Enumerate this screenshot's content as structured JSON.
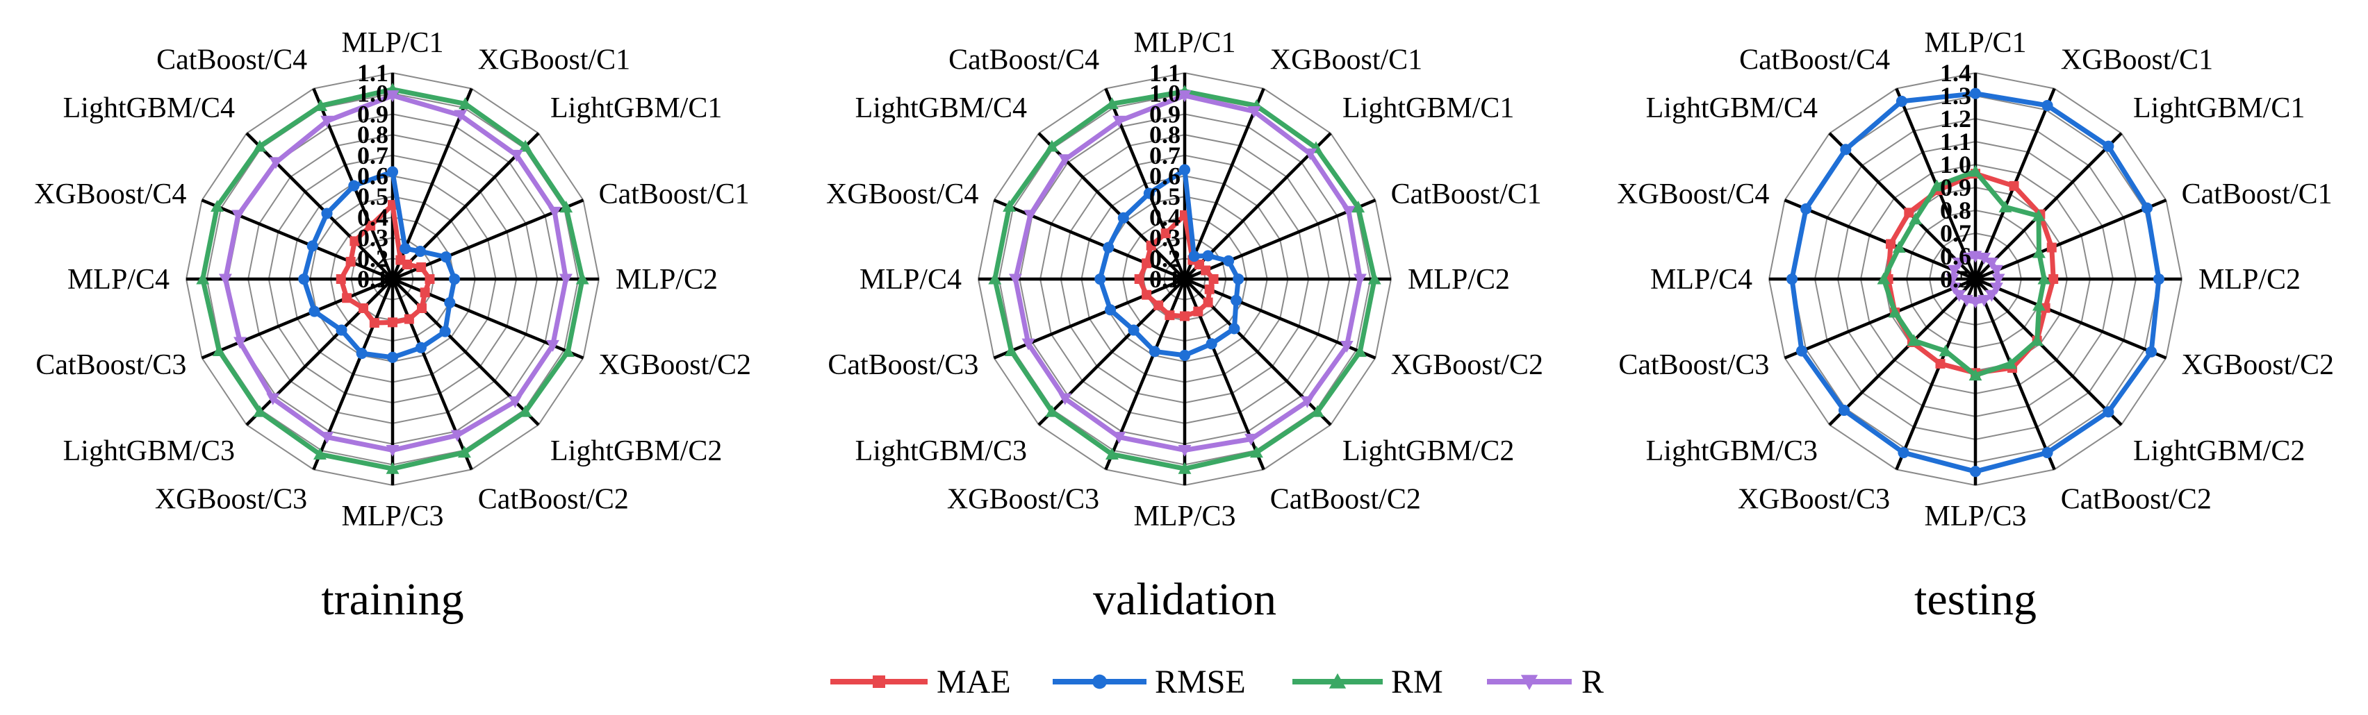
{
  "colors": {
    "MAE": "#e8474c",
    "RMSE": "#1f6fd6",
    "RM": "#3ba864",
    "R": "#a976de"
  },
  "chart_data": [
    {
      "type": "radar",
      "title": "training",
      "categories": [
        "MLP/C1",
        "XGBoost/C1",
        "LightGBM/C1",
        "CatBoost/C1",
        "MLP/C2",
        "XGBoost/C2",
        "LightGBM/C2",
        "CatBoost/C2",
        "MLP/C3",
        "XGBoost/C3",
        "LightGBM/C3",
        "CatBoost/C3",
        "MLP/C4",
        "XGBoost/C4",
        "LightGBM/C4",
        "CatBoost/C4"
      ],
      "rlim": [
        0.1,
        1.1
      ],
      "ticks": [
        "0.1",
        "0.2",
        "0.3",
        "0.4",
        "0.5",
        "0.6",
        "0.7",
        "0.8",
        "0.9",
        "1.0",
        "1.1"
      ],
      "series": [
        {
          "name": "MAE",
          "values": [
            0.46,
            0.2,
            0.2,
            0.25,
            0.28,
            0.27,
            0.3,
            0.31,
            0.31,
            0.33,
            0.3,
            0.34,
            0.35,
            0.32,
            0.36,
            0.38
          ]
        },
        {
          "name": "RMSE",
          "values": [
            0.62,
            0.26,
            0.29,
            0.38,
            0.4,
            0.4,
            0.46,
            0.46,
            0.48,
            0.49,
            0.45,
            0.51,
            0.53,
            0.52,
            0.55,
            0.59
          ]
        },
        {
          "name": "RM",
          "values": [
            1.02,
            1.02,
            1.01,
            1.01,
            1.02,
            1.02,
            1.01,
            1.01,
            1.02,
            1.02,
            1.01,
            1.01,
            1.02,
            1.02,
            1.01,
            1.01
          ]
        },
        {
          "name": "R",
          "values": [
            0.99,
            0.96,
            0.95,
            0.95,
            0.94,
            0.94,
            0.94,
            0.92,
            0.93,
            0.93,
            0.92,
            0.9,
            0.91,
            0.91,
            0.9,
            0.93
          ]
        }
      ]
    },
    {
      "type": "radar",
      "title": "validation",
      "categories": [
        "MLP/C1",
        "XGBoost/C1",
        "LightGBM/C1",
        "CatBoost/C1",
        "MLP/C2",
        "XGBoost/C2",
        "LightGBM/C2",
        "CatBoost/C2",
        "MLP/C3",
        "XGBoost/C3",
        "LightGBM/C3",
        "CatBoost/C3",
        "MLP/C4",
        "XGBoost/C4",
        "LightGBM/C4",
        "CatBoost/C4"
      ],
      "rlim": [
        0.1,
        1.1
      ],
      "ticks": [
        "0.1",
        "0.2",
        "0.3",
        "0.4",
        "0.5",
        "0.6",
        "0.7",
        "0.8",
        "0.9",
        "1.0",
        "1.1"
      ],
      "series": [
        {
          "name": "MAE",
          "values": [
            0.41,
            0.2,
            0.2,
            0.21,
            0.24,
            0.23,
            0.26,
            0.27,
            0.28,
            0.29,
            0.28,
            0.3,
            0.32,
            0.3,
            0.33,
            0.34
          ]
        },
        {
          "name": "RMSE",
          "values": [
            0.63,
            0.22,
            0.26,
            0.33,
            0.36,
            0.37,
            0.44,
            0.44,
            0.47,
            0.48,
            0.45,
            0.49,
            0.51,
            0.5,
            0.52,
            0.55
          ]
        },
        {
          "name": "RM",
          "values": [
            1.01,
            1.01,
            1.0,
            1.01,
            1.02,
            1.02,
            1.01,
            1.01,
            1.02,
            1.02,
            1.01,
            1.01,
            1.02,
            1.02,
            1.01,
            1.02
          ]
        },
        {
          "name": "R",
          "values": [
            0.99,
            0.98,
            0.96,
            0.96,
            0.95,
            0.95,
            0.94,
            0.94,
            0.93,
            0.93,
            0.92,
            0.92,
            0.92,
            0.91,
            0.92,
            0.93
          ]
        }
      ]
    },
    {
      "type": "radar",
      "title": "testing",
      "categories": [
        "MLP/C1",
        "XGBoost/C1",
        "LightGBM/C1",
        "CatBoost/C1",
        "MLP/C2",
        "XGBoost/C2",
        "LightGBM/C2",
        "CatBoost/C2",
        "MLP/C3",
        "XGBoost/C3",
        "LightGBM/C3",
        "CatBoost/C3",
        "MLP/C4",
        "XGBoost/C4",
        "LightGBM/C4",
        "CatBoost/C4"
      ],
      "rlim": [
        0.5,
        1.4
      ],
      "ticks": [
        "0.5",
        "0.6",
        "0.7",
        "0.8",
        "0.9",
        "1.0",
        "1.1",
        "1.2",
        "1.3",
        "1.4"
      ],
      "series": [
        {
          "name": "MAE",
          "values": [
            0.96,
            0.94,
            0.9,
            0.86,
            0.84,
            0.83,
            0.88,
            0.92,
            0.91,
            0.9,
            0.89,
            0.88,
            0.88,
            0.9,
            0.91,
            0.92
          ]
        },
        {
          "name": "RMSE",
          "values": [
            1.31,
            1.32,
            1.32,
            1.31,
            1.3,
            1.33,
            1.32,
            1.32,
            1.34,
            1.32,
            1.31,
            1.32,
            1.3,
            1.3,
            1.3,
            1.34
          ]
        },
        {
          "name": "RM",
          "values": [
            0.97,
            0.84,
            0.89,
            0.8,
            0.8,
            0.8,
            0.88,
            0.9,
            0.92,
            0.84,
            0.88,
            0.88,
            0.9,
            0.86,
            0.87,
            0.94
          ]
        },
        {
          "name": "R",
          "values": [
            0.6,
            0.6,
            0.6,
            0.6,
            0.6,
            0.6,
            0.6,
            0.6,
            0.6,
            0.6,
            0.6,
            0.6,
            0.6,
            0.6,
            0.6,
            0.6
          ]
        }
      ]
    }
  ],
  "legend": [
    {
      "name": "MAE",
      "label": "MAE",
      "marker": "square"
    },
    {
      "name": "RMSE",
      "label": "RMSE",
      "marker": "circle"
    },
    {
      "name": "RM",
      "label": "RM",
      "marker": "triangle-up"
    },
    {
      "name": "R",
      "label": "R",
      "marker": "triangle-down"
    }
  ]
}
